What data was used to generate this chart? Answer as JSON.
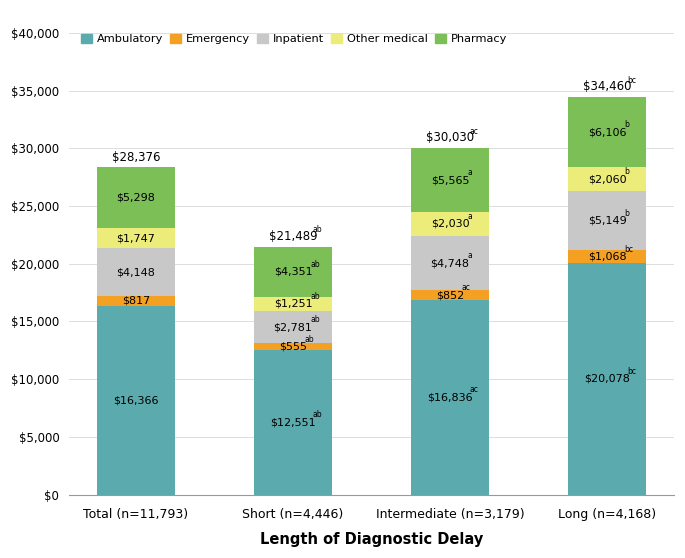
{
  "categories": [
    "Total (n=11,793)",
    "Short (n=4,446)",
    "Intermediate (n=3,179)",
    "Long (n=4,168)"
  ],
  "ambulatory": [
    16366,
    12551,
    16836,
    20078
  ],
  "emergency": [
    817,
    555,
    852,
    1068
  ],
  "inpatient": [
    4148,
    2781,
    4748,
    5149
  ],
  "other_medical": [
    1747,
    1251,
    2030,
    2060
  ],
  "pharmacy": [
    5298,
    4351,
    5565,
    6106
  ],
  "total_labels": [
    "$28,376",
    "$21,489",
    "$30,030",
    "$34,460"
  ],
  "total_superscripts": [
    "",
    "ab",
    "ac",
    "bc"
  ],
  "ambulatory_raw": [
    "$16,366",
    "$12,551",
    "$16,836",
    "$20,078"
  ],
  "ambulatory_sup": [
    "",
    "ab",
    "ac",
    "bc"
  ],
  "emergency_raw": [
    "$817",
    "$555",
    "$852",
    "$1,068"
  ],
  "emergency_sup": [
    "",
    "ab",
    "ac",
    "bc"
  ],
  "inpatient_raw": [
    "$4,148",
    "$2,781",
    "$4,748",
    "$5,149"
  ],
  "inpatient_sup": [
    "",
    "ab",
    "a",
    "b"
  ],
  "other_medical_raw": [
    "$1,747",
    "$1,251",
    "$2,030",
    "$2,060"
  ],
  "other_medical_sup": [
    "",
    "ab",
    "a",
    "b"
  ],
  "pharmacy_raw": [
    "$5,298",
    "$4,351",
    "$5,565",
    "$6,106"
  ],
  "pharmacy_sup": [
    "",
    "ab",
    "a",
    "b"
  ],
  "colors": {
    "ambulatory": "#5BAAAD",
    "emergency": "#F4A123",
    "inpatient": "#C8C8C8",
    "other_medical": "#ECEC7A",
    "pharmacy": "#7BBF56"
  },
  "ylim": [
    0,
    40000
  ],
  "yticks": [
    0,
    5000,
    10000,
    15000,
    20000,
    25000,
    30000,
    35000,
    40000
  ],
  "xlabel": "Length of Diagnostic Delay",
  "bar_width": 0.5
}
